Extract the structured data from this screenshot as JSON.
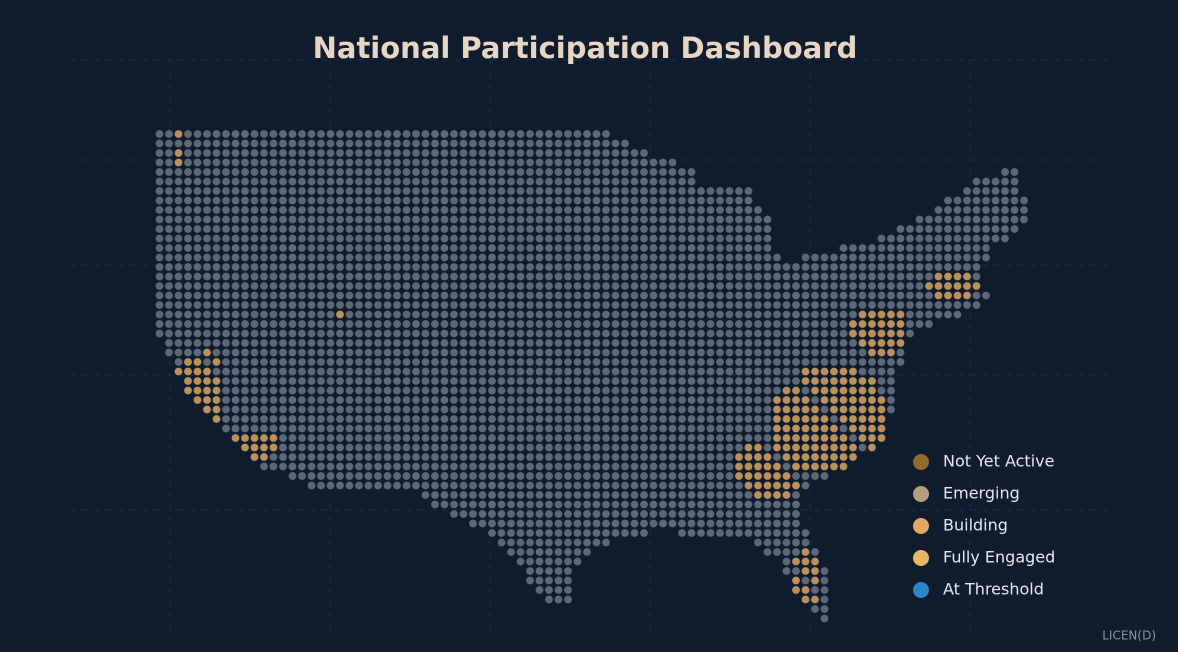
{
  "header": {
    "title": "National Participation Dashboard"
  },
  "legend": {
    "items": [
      {
        "label": "Not Yet Active",
        "color": "#946a2c"
      },
      {
        "label": "Emerging",
        "color": "#b39e7e"
      },
      {
        "label": "Building",
        "color": "#e3a95e"
      },
      {
        "label": "Fully Engaged",
        "color": "#e8b765"
      },
      {
        "label": "At Threshold",
        "color": "#2a86c4"
      }
    ]
  },
  "footer": {
    "watermark": "LICEN(D)"
  }
}
